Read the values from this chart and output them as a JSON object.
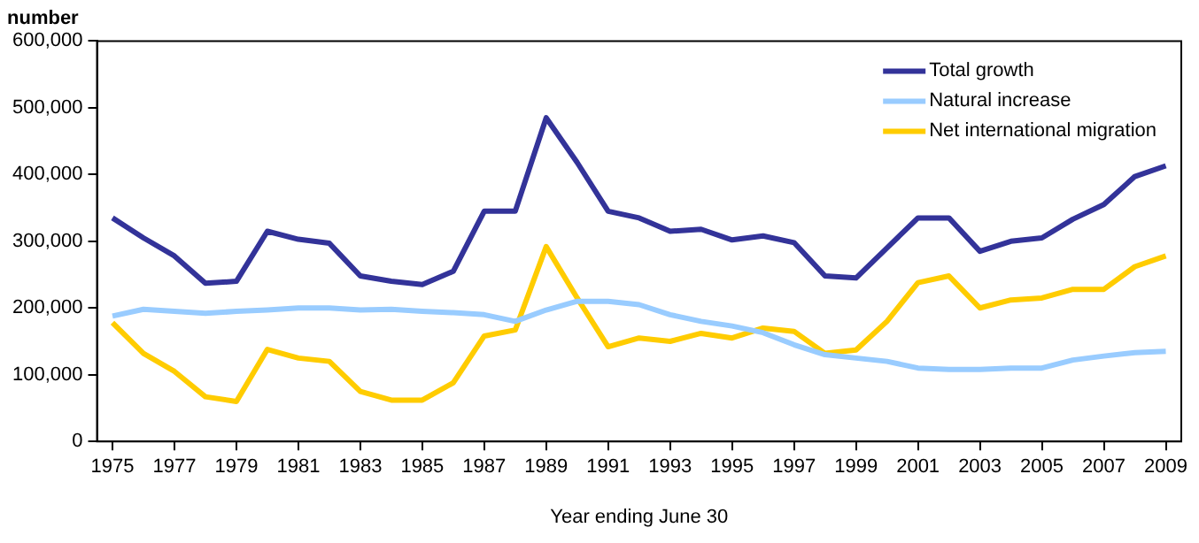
{
  "chart_data": {
    "type": "line",
    "ylabel": "number",
    "xlabel": "Year ending June 30",
    "x": [
      1975,
      1976,
      1977,
      1978,
      1979,
      1980,
      1981,
      1982,
      1983,
      1984,
      1985,
      1986,
      1987,
      1988,
      1989,
      1990,
      1991,
      1992,
      1993,
      1994,
      1995,
      1996,
      1997,
      1998,
      1999,
      2000,
      2001,
      2002,
      2003,
      2004,
      2005,
      2006,
      2007,
      2008,
      2009
    ],
    "series": [
      {
        "name": "Total growth",
        "color": "#333399",
        "values": [
          335000,
          305000,
          278000,
          237000,
          240000,
          315000,
          303000,
          297000,
          248000,
          240000,
          235000,
          255000,
          345000,
          345000,
          485000,
          418000,
          345000,
          335000,
          315000,
          318000,
          302000,
          308000,
          298000,
          248000,
          245000,
          290000,
          335000,
          335000,
          285000,
          300000,
          305000,
          333000,
          355000,
          397000,
          413000
        ]
      },
      {
        "name": "Natural increase",
        "color": "#99ccff",
        "values": [
          188000,
          198000,
          195000,
          192000,
          195000,
          197000,
          200000,
          200000,
          197000,
          198000,
          195000,
          193000,
          190000,
          180000,
          197000,
          210000,
          210000,
          205000,
          190000,
          180000,
          173000,
          163000,
          145000,
          130000,
          125000,
          120000,
          110000,
          108000,
          108000,
          110000,
          110000,
          122000,
          128000,
          133000,
          135000
        ]
      },
      {
        "name": "Net international migration",
        "color": "#ffcc00",
        "values": [
          178000,
          132000,
          105000,
          67000,
          60000,
          138000,
          125000,
          120000,
          75000,
          62000,
          62000,
          88000,
          158000,
          167000,
          292000,
          215000,
          142000,
          155000,
          150000,
          162000,
          155000,
          170000,
          165000,
          132000,
          137000,
          180000,
          238000,
          248000,
          200000,
          212000,
          215000,
          228000,
          228000,
          262000,
          278000
        ]
      }
    ],
    "xlim": [
      1974.5,
      2009.5
    ],
    "xticks": [
      1975,
      1977,
      1979,
      1981,
      1983,
      1985,
      1987,
      1989,
      1991,
      1993,
      1995,
      1997,
      1999,
      2001,
      2003,
      2005,
      2007,
      2009
    ],
    "ylim": [
      0,
      600000
    ],
    "yticks": [
      0,
      {
        "value": 100000,
        "label": "100,000"
      },
      {
        "value": 200000,
        "label": "200,000"
      },
      {
        "value": 300000,
        "label": "300,000"
      },
      {
        "value": 400000,
        "label": "400,000"
      },
      {
        "value": 500000,
        "label": "500,000"
      },
      {
        "value": 600000,
        "label": "600,000"
      }
    ],
    "grid": false,
    "legend": "top right",
    "marker": "none",
    "line_style": "solid"
  }
}
